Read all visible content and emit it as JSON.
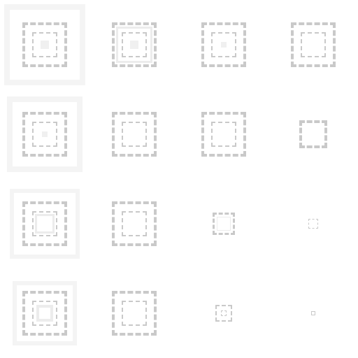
{
  "grid": {
    "rows": 4,
    "columns": 4,
    "background": "#ffffff",
    "colors": {
      "dashed_outline": "#c9c9c9",
      "soft_glow": "#f4f4f4",
      "faint_fill": "#ececec"
    }
  },
  "tiles": [
    {
      "row": 0,
      "col": 0,
      "variant": "nested-squares-with-glow"
    },
    {
      "row": 0,
      "col": 1,
      "variant": "nested-squares-with-inner-fill"
    },
    {
      "row": 0,
      "col": 2,
      "variant": "nested-squares-with-center-dot"
    },
    {
      "row": 0,
      "col": 3,
      "variant": "nested-squares"
    },
    {
      "row": 1,
      "col": 0,
      "variant": "nested-squares-with-glow"
    },
    {
      "row": 1,
      "col": 1,
      "variant": "nested-squares"
    },
    {
      "row": 1,
      "col": 2,
      "variant": "nested-squares"
    },
    {
      "row": 1,
      "col": 3,
      "variant": "dense-dashed-square"
    },
    {
      "row": 2,
      "col": 0,
      "variant": "nested-squares-with-glow"
    },
    {
      "row": 2,
      "col": 1,
      "variant": "nested-squares"
    },
    {
      "row": 2,
      "col": 2,
      "variant": "small-nested-squares"
    },
    {
      "row": 2,
      "col": 3,
      "variant": "tiny-dashed-square"
    },
    {
      "row": 3,
      "col": 0,
      "variant": "nested-squares-with-glow"
    },
    {
      "row": 3,
      "col": 1,
      "variant": "nested-squares"
    },
    {
      "row": 3,
      "col": 2,
      "variant": "small-nested-squares"
    },
    {
      "row": 3,
      "col": 3,
      "variant": "tiny-dashed-square"
    }
  ]
}
